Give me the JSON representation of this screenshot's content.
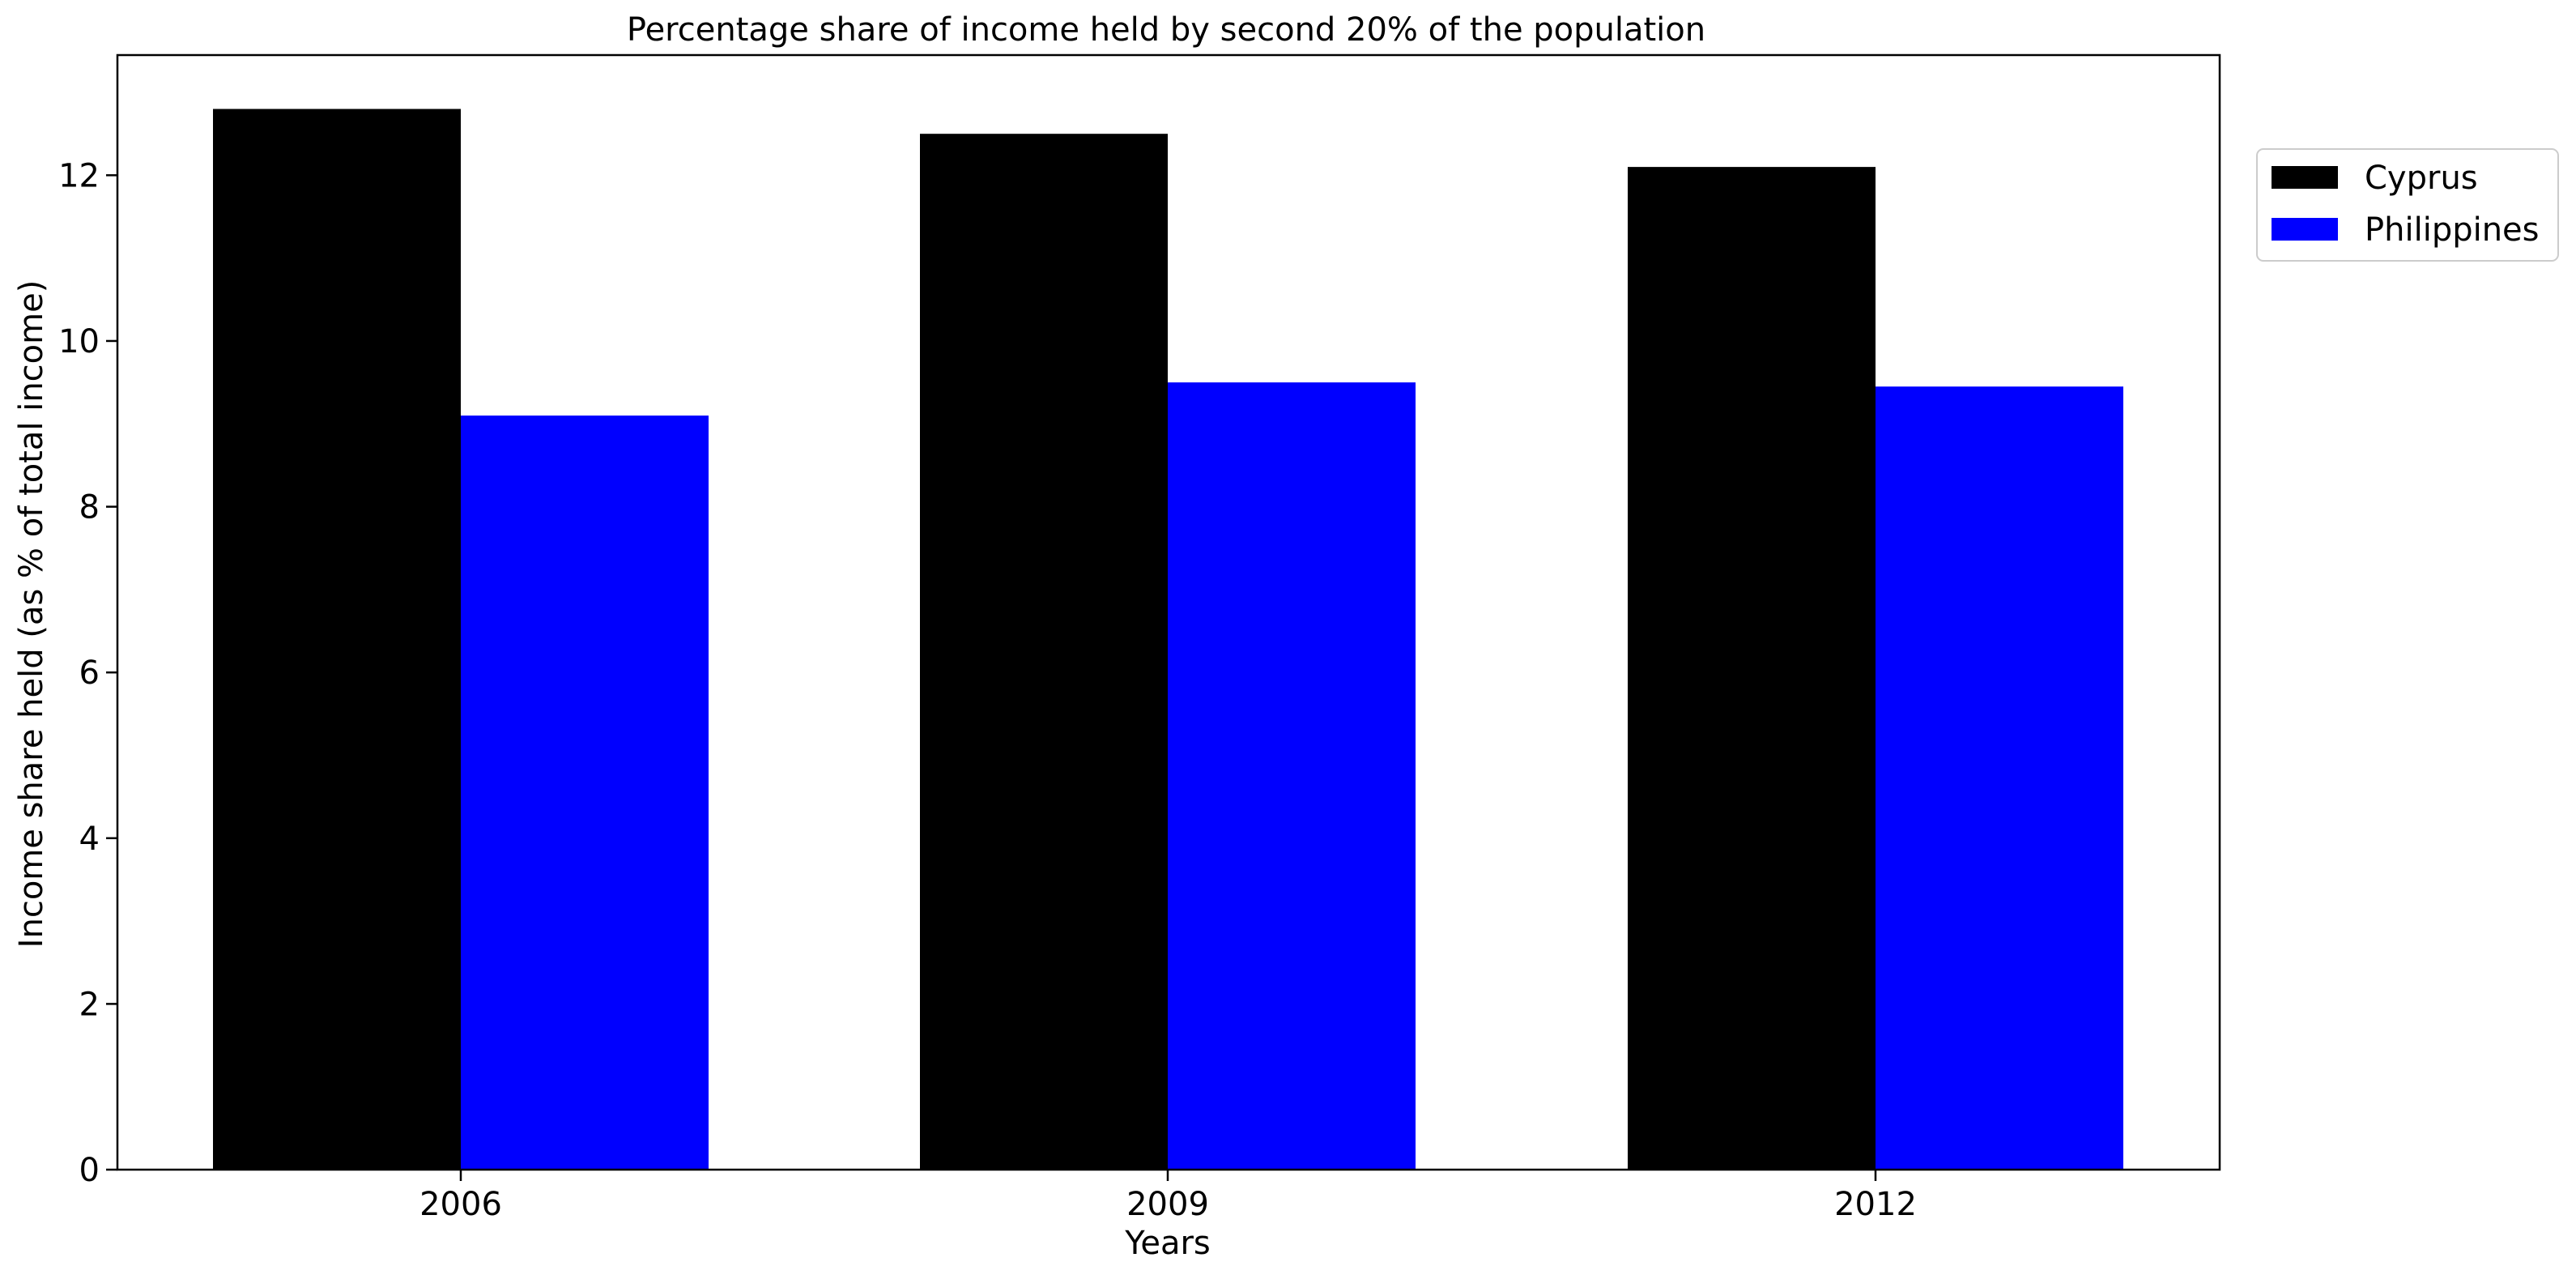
{
  "chart_data": {
    "type": "bar",
    "title": "Percentage share of income held by second 20% of the population",
    "xlabel": "Years",
    "ylabel": "Income share held (as % of total income)",
    "categories": [
      "2006",
      "2009",
      "2012"
    ],
    "series": [
      {
        "name": "Cyprus",
        "values": [
          12.8,
          12.5,
          12.1
        ],
        "color": "#000000"
      },
      {
        "name": "Philippines",
        "values": [
          9.1,
          9.5,
          9.45
        ],
        "color": "#0000ff"
      }
    ],
    "ylim": [
      0,
      13.45
    ],
    "yticks": [
      "0",
      "2",
      "4",
      "6",
      "8",
      "10",
      "12"
    ],
    "grid": false,
    "legend_position": "outside-top-right"
  }
}
